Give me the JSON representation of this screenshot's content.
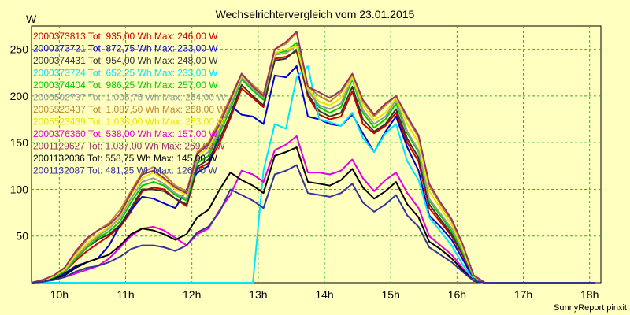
{
  "chart_data": {
    "type": "line",
    "title": "Wechselrichtervergleich vom 23.01.2015",
    "ylabel": "W",
    "xlim": [
      9.58,
      18.17
    ],
    "ylim": [
      0,
      275
    ],
    "yticks": [
      50,
      100,
      150,
      200,
      250
    ],
    "xticks": [
      {
        "x": 10,
        "label": "10h"
      },
      {
        "x": 11,
        "label": "11h"
      },
      {
        "x": 12,
        "label": "12h"
      },
      {
        "x": 13,
        "label": "13h"
      },
      {
        "x": 14,
        "label": "14h"
      },
      {
        "x": 15,
        "label": "15h"
      },
      {
        "x": 16,
        "label": "16h"
      },
      {
        "x": 17,
        "label": "17h"
      },
      {
        "x": 18,
        "label": "18h"
      }
    ],
    "grid": true,
    "x": [
      9.58,
      9.75,
      9.92,
      10.08,
      10.25,
      10.42,
      10.58,
      10.75,
      10.92,
      11.08,
      11.25,
      11.42,
      11.58,
      11.75,
      11.92,
      12.08,
      12.25,
      12.42,
      12.58,
      12.75,
      12.92,
      13.08,
      13.25,
      13.42,
      13.58,
      13.75,
      13.92,
      14.08,
      14.25,
      14.42,
      14.58,
      14.75,
      14.92,
      15.08,
      15.25,
      15.42,
      15.58,
      15.75,
      15.92,
      16.08,
      16.25,
      16.42,
      16.58,
      16.75,
      16.92,
      17.08,
      17.25,
      17.42,
      17.58,
      17.75,
      17.92,
      18.08
    ],
    "series": [
      {
        "label": "2000373813 Tot: 935,00 Wh Max: 246,00 W",
        "color": "#cc0000",
        "values": [
          0,
          2,
          6,
          12,
          24,
          34,
          42,
          50,
          60,
          76,
          98,
          102,
          100,
          90,
          82,
          122,
          128,
          150,
          176,
          208,
          198,
          188,
          240,
          242,
          248,
          200,
          180,
          175,
          178,
          205,
          170,
          160,
          168,
          182,
          150,
          130,
          80,
          65,
          50,
          30,
          5,
          0,
          0,
          0,
          0,
          0,
          0,
          0,
          0,
          0,
          0,
          0
        ]
      },
      {
        "label": "2000373721 Tot: 872,75 Wh Max: 233,00 W",
        "color": "#0000cc",
        "values": [
          0,
          1,
          5,
          10,
          18,
          22,
          26,
          40,
          62,
          78,
          92,
          90,
          85,
          80,
          100,
          118,
          125,
          160,
          190,
          180,
          178,
          170,
          222,
          220,
          232,
          178,
          175,
          170,
          168,
          180,
          160,
          140,
          162,
          178,
          145,
          120,
          72,
          60,
          46,
          26,
          4,
          0,
          0,
          0,
          0,
          0,
          0,
          0,
          0,
          0,
          0,
          0
        ]
      },
      {
        "label": "2000374431 Tot: 954,00 Wh Max: 248,00 W",
        "color": "#333333",
        "values": [
          0,
          2,
          6,
          12,
          26,
          38,
          46,
          52,
          62,
          80,
          100,
          100,
          98,
          90,
          84,
          124,
          132,
          154,
          180,
          212,
          200,
          190,
          238,
          240,
          250,
          202,
          184,
          178,
          182,
          210,
          175,
          162,
          170,
          186,
          154,
          134,
          84,
          68,
          52,
          32,
          6,
          0,
          0,
          0,
          0,
          0,
          0,
          0,
          0,
          0,
          0,
          0
        ]
      },
      {
        "label": "2000373724 Tot: 652,25 Wh Max: 233,00 W",
        "color": "#00e5ff",
        "values": [
          0,
          0,
          0,
          0,
          0,
          0,
          0,
          0,
          0,
          0,
          0,
          0,
          0,
          0,
          0,
          0,
          0,
          0,
          0,
          0,
          0,
          120,
          170,
          165,
          220,
          232,
          175,
          172,
          168,
          182,
          155,
          140,
          160,
          170,
          130,
          110,
          70,
          55,
          40,
          20,
          3,
          0,
          0,
          0,
          0,
          0,
          0,
          0,
          0,
          0,
          0,
          0
        ]
      },
      {
        "label": "2000374404 Tot: 986,25 Wh Max: 257,00 W",
        "color": "#00cc00",
        "values": [
          0,
          2,
          6,
          12,
          26,
          38,
          48,
          55,
          66,
          86,
          104,
          108,
          104,
          94,
          88,
          128,
          136,
          160,
          186,
          218,
          206,
          196,
          246,
          248,
          257,
          208,
          188,
          182,
          188,
          218,
          182,
          166,
          175,
          192,
          160,
          140,
          88,
          72,
          55,
          34,
          6,
          0,
          0,
          0,
          0,
          0,
          0,
          0,
          0,
          0,
          0,
          0
        ]
      },
      {
        "label": "2000502737 Tot: 1.005,75 Wh Max: 254,00 W",
        "color": "#999999",
        "values": [
          0,
          2,
          7,
          14,
          28,
          40,
          50,
          58,
          70,
          90,
          108,
          112,
          106,
          96,
          90,
          132,
          140,
          164,
          190,
          220,
          208,
          198,
          244,
          246,
          254,
          206,
          190,
          186,
          192,
          220,
          185,
          170,
          178,
          196,
          162,
          142,
          90,
          74,
          58,
          36,
          7,
          0,
          0,
          0,
          0,
          0,
          0,
          0,
          0,
          0,
          0,
          0
        ]
      },
      {
        "label": "2005523437 Tot: 1.087,50 Wh Max: 268,00 W",
        "color": "#c08830",
        "values": [
          0,
          3,
          8,
          16,
          32,
          46,
          56,
          64,
          78,
          98,
          118,
          124,
          116,
          104,
          98,
          140,
          150,
          174,
          198,
          224,
          212,
          202,
          250,
          256,
          268,
          210,
          200,
          194,
          204,
          222,
          194,
          178,
          190,
          200,
          176,
          156,
          104,
          84,
          66,
          40,
          8,
          0,
          0,
          0,
          0,
          0,
          0,
          0,
          0,
          0,
          0,
          0
        ]
      },
      {
        "label": "2005523439 Tot: 1.038,00 Wh Max: 253,00 W",
        "color": "#e6e600",
        "values": [
          0,
          2,
          7,
          14,
          30,
          42,
          52,
          60,
          72,
          94,
          112,
          118,
          110,
          100,
          94,
          136,
          144,
          168,
          194,
          222,
          210,
          200,
          246,
          250,
          253,
          208,
          194,
          190,
          198,
          220,
          190,
          174,
          182,
          198,
          170,
          150,
          98,
          80,
          62,
          38,
          7,
          0,
          0,
          0,
          0,
          0,
          0,
          0,
          0,
          0,
          0,
          0
        ]
      },
      {
        "label": "2000376360 Tot: 538,00 Wh Max: 157,00 W",
        "color": "#e000e0",
        "values": [
          0,
          1,
          3,
          6,
          10,
          14,
          18,
          26,
          38,
          50,
          58,
          60,
          56,
          48,
          40,
          52,
          58,
          78,
          94,
          120,
          116,
          108,
          142,
          148,
          157,
          118,
          118,
          116,
          120,
          132,
          112,
          98,
          110,
          118,
          96,
          80,
          50,
          40,
          30,
          16,
          2,
          0,
          0,
          0,
          0,
          0,
          0,
          0,
          0,
          0,
          0,
          0
        ]
      },
      {
        "label": "2001129627 Tot: 1.037,00 Wh Max: 269,00 W",
        "color": "#993366",
        "values": [
          0,
          3,
          8,
          16,
          34,
          48,
          56,
          62,
          74,
          96,
          116,
          120,
          112,
          102,
          96,
          138,
          148,
          170,
          196,
          224,
          210,
          200,
          250,
          258,
          269,
          210,
          204,
          198,
          206,
          224,
          196,
          180,
          192,
          200,
          178,
          158,
          106,
          86,
          68,
          42,
          8,
          0,
          0,
          0,
          0,
          0,
          0,
          0,
          0,
          0,
          0,
          0
        ]
      },
      {
        "label": "2001132036 Tot: 558,75 Wh Max: 145,00 W",
        "color": "#000000",
        "values": [
          0,
          1,
          4,
          8,
          16,
          22,
          26,
          30,
          40,
          52,
          58,
          56,
          52,
          46,
          52,
          70,
          78,
          100,
          118,
          110,
          104,
          96,
          136,
          140,
          145,
          108,
          106,
          104,
          110,
          122,
          102,
          90,
          98,
          108,
          84,
          70,
          44,
          36,
          26,
          14,
          2,
          0,
          0,
          0,
          0,
          0,
          0,
          0,
          0,
          0,
          0,
          0
        ]
      },
      {
        "label": "2001132087 Tot: 481,25 Wh Max: 126,00 W",
        "color": "#333399",
        "values": [
          0,
          1,
          3,
          6,
          12,
          16,
          18,
          22,
          28,
          36,
          40,
          40,
          38,
          34,
          40,
          54,
          60,
          76,
          100,
          94,
          88,
          80,
          116,
          120,
          126,
          96,
          94,
          92,
          96,
          106,
          86,
          76,
          84,
          94,
          72,
          60,
          38,
          30,
          22,
          12,
          2,
          0,
          0,
          0,
          0,
          0,
          0,
          0,
          0,
          0,
          0,
          0
        ]
      }
    ]
  },
  "footer": "SunnyReport pinxit"
}
